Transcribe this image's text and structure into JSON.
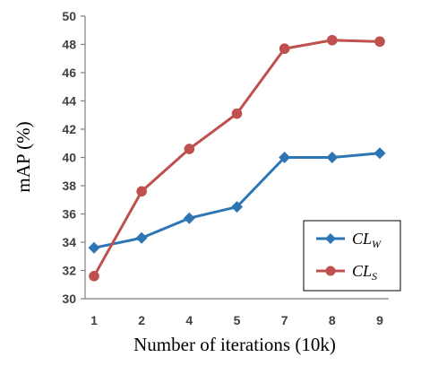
{
  "chart_data": {
    "type": "line",
    "title": "",
    "xlabel": "Number of iterations (10k)",
    "ylabel": "mAP (%)",
    "categories": [
      "1",
      "2",
      "4",
      "5",
      "7",
      "8",
      "9"
    ],
    "ylim": [
      30,
      50
    ],
    "yticks": [
      30,
      32,
      34,
      36,
      38,
      40,
      42,
      44,
      46,
      48,
      50
    ],
    "grid": false,
    "legend_position": "bottom-right",
    "series": [
      {
        "name": "CL",
        "name_sub": "W",
        "color": "#2e75b6",
        "marker": "diamond",
        "values": [
          33.6,
          34.3,
          35.7,
          36.5,
          40.0,
          40.0,
          40.3
        ]
      },
      {
        "name": "CL",
        "name_sub": "S",
        "color": "#c0504d",
        "marker": "circle",
        "values": [
          31.6,
          37.6,
          40.6,
          43.1,
          47.7,
          48.3,
          48.2
        ]
      }
    ]
  }
}
